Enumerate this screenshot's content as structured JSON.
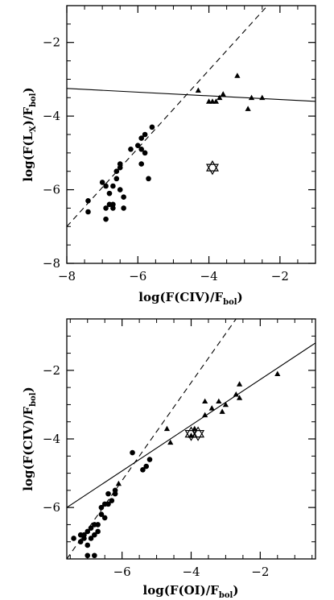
{
  "chart_data": [
    {
      "type": "scatter",
      "title": "",
      "xlabel": "log(F(CIV)/F_bol)",
      "ylabel": "log(F(L_X)/F_bol)",
      "xlim": [
        -8,
        -1
      ],
      "ylim": [
        -8,
        -1
      ],
      "xticks": [
        -8,
        -6,
        -4,
        -2
      ],
      "yticks": [
        -8,
        -6,
        -4,
        -2
      ],
      "series": [
        {
          "marker": "circle",
          "points": [
            [
              -7.4,
              -6.3
            ],
            [
              -7.4,
              -6.6
            ],
            [
              -7.0,
              -5.8
            ],
            [
              -6.9,
              -5.9
            ],
            [
              -6.9,
              -6.5
            ],
            [
              -6.9,
              -6.8
            ],
            [
              -6.8,
              -6.1
            ],
            [
              -6.8,
              -6.4
            ],
            [
              -6.7,
              -5.9
            ],
            [
              -6.7,
              -6.5
            ],
            [
              -6.7,
              -6.4
            ],
            [
              -6.6,
              -5.5
            ],
            [
              -6.6,
              -5.7
            ],
            [
              -6.5,
              -5.4
            ],
            [
              -6.5,
              -5.3
            ],
            [
              -6.5,
              -6.0
            ],
            [
              -6.4,
              -6.2
            ],
            [
              -6.4,
              -6.5
            ],
            [
              -6.2,
              -4.9
            ],
            [
              -6.0,
              -4.8
            ],
            [
              -5.9,
              -4.6
            ],
            [
              -5.9,
              -4.9
            ],
            [
              -5.9,
              -5.3
            ],
            [
              -5.8,
              -4.5
            ],
            [
              -5.8,
              -5.0
            ],
            [
              -5.7,
              -5.7
            ],
            [
              -5.6,
              -4.3
            ]
          ]
        },
        {
          "marker": "triangle",
          "points": [
            [
              -4.3,
              -3.3
            ],
            [
              -4.0,
              -3.6
            ],
            [
              -3.9,
              -3.6
            ],
            [
              -3.8,
              -3.6
            ],
            [
              -3.7,
              -3.5
            ],
            [
              -3.6,
              -3.4
            ],
            [
              -3.2,
              -2.9
            ],
            [
              -2.9,
              -3.8
            ],
            [
              -2.8,
              -3.5
            ],
            [
              -2.5,
              -3.5
            ]
          ]
        },
        {
          "marker": "star",
          "points": [
            [
              -3.9,
              -5.4
            ]
          ]
        }
      ],
      "lines": [
        {
          "style": "solid",
          "points": [
            [
              -8,
              -3.25
            ],
            [
              -1,
              -3.6
            ]
          ]
        },
        {
          "style": "dashed",
          "points": [
            [
              -8,
              -7.0
            ],
            [
              -2.35,
              -1
            ]
          ]
        }
      ]
    },
    {
      "type": "scatter",
      "title": "",
      "xlabel": "log(F(OI)/F_bol)",
      "ylabel": "log(F(CIV)/F_bol)",
      "xlim": [
        -7.6,
        -0.4
      ],
      "ylim": [
        -7.5,
        -0.5
      ],
      "xticks": [
        -6,
        -4,
        -2
      ],
      "yticks": [
        -6,
        -4,
        -2
      ],
      "series": [
        {
          "marker": "circle",
          "points": [
            [
              -7.4,
              -6.9
            ],
            [
              -7.2,
              -6.8
            ],
            [
              -7.2,
              -7.0
            ],
            [
              -7.1,
              -6.8
            ],
            [
              -7.1,
              -6.9
            ],
            [
              -7.0,
              -6.7
            ],
            [
              -7.0,
              -7.1
            ],
            [
              -6.9,
              -6.6
            ],
            [
              -6.9,
              -6.9
            ],
            [
              -6.8,
              -6.5
            ],
            [
              -6.8,
              -6.8
            ],
            [
              -6.7,
              -6.7
            ],
            [
              -6.7,
              -6.5
            ],
            [
              -6.6,
              -6.2
            ],
            [
              -6.6,
              -6.0
            ],
            [
              -6.5,
              -6.3
            ],
            [
              -6.5,
              -5.9
            ],
            [
              -6.4,
              -5.6
            ],
            [
              -6.4,
              -5.9
            ],
            [
              -6.3,
              -5.8
            ],
            [
              -6.2,
              -5.5
            ],
            [
              -6.2,
              -5.6
            ],
            [
              -5.7,
              -4.4
            ],
            [
              -5.4,
              -4.9
            ],
            [
              -5.3,
              -4.8
            ],
            [
              -5.2,
              -4.6
            ],
            [
              -7.0,
              -7.4
            ],
            [
              -6.8,
              -7.4
            ]
          ]
        },
        {
          "marker": "triangle",
          "points": [
            [
              -6.1,
              -5.3
            ],
            [
              -4.7,
              -3.7
            ],
            [
              -4.6,
              -4.1
            ],
            [
              -4.0,
              -3.9
            ],
            [
              -3.9,
              -3.7
            ],
            [
              -3.6,
              -3.3
            ],
            [
              -3.6,
              -2.9
            ],
            [
              -3.4,
              -3.1
            ],
            [
              -3.2,
              -2.9
            ],
            [
              -3.1,
              -3.2
            ],
            [
              -3.0,
              -3.0
            ],
            [
              -2.7,
              -2.7
            ],
            [
              -2.6,
              -2.4
            ],
            [
              -2.6,
              -2.8
            ],
            [
              -1.5,
              -2.1
            ]
          ]
        },
        {
          "marker": "star",
          "points": [
            [
              -4.0,
              -3.85
            ],
            [
              -3.8,
              -3.85
            ]
          ]
        }
      ],
      "lines": [
        {
          "style": "solid",
          "points": [
            [
              -7.6,
              -6.0
            ],
            [
              -0.4,
              -1.2
            ]
          ]
        },
        {
          "style": "dashed",
          "points": [
            [
              -7.6,
              -7.5
            ],
            [
              -2.7,
              -0.5
            ]
          ]
        }
      ]
    }
  ]
}
